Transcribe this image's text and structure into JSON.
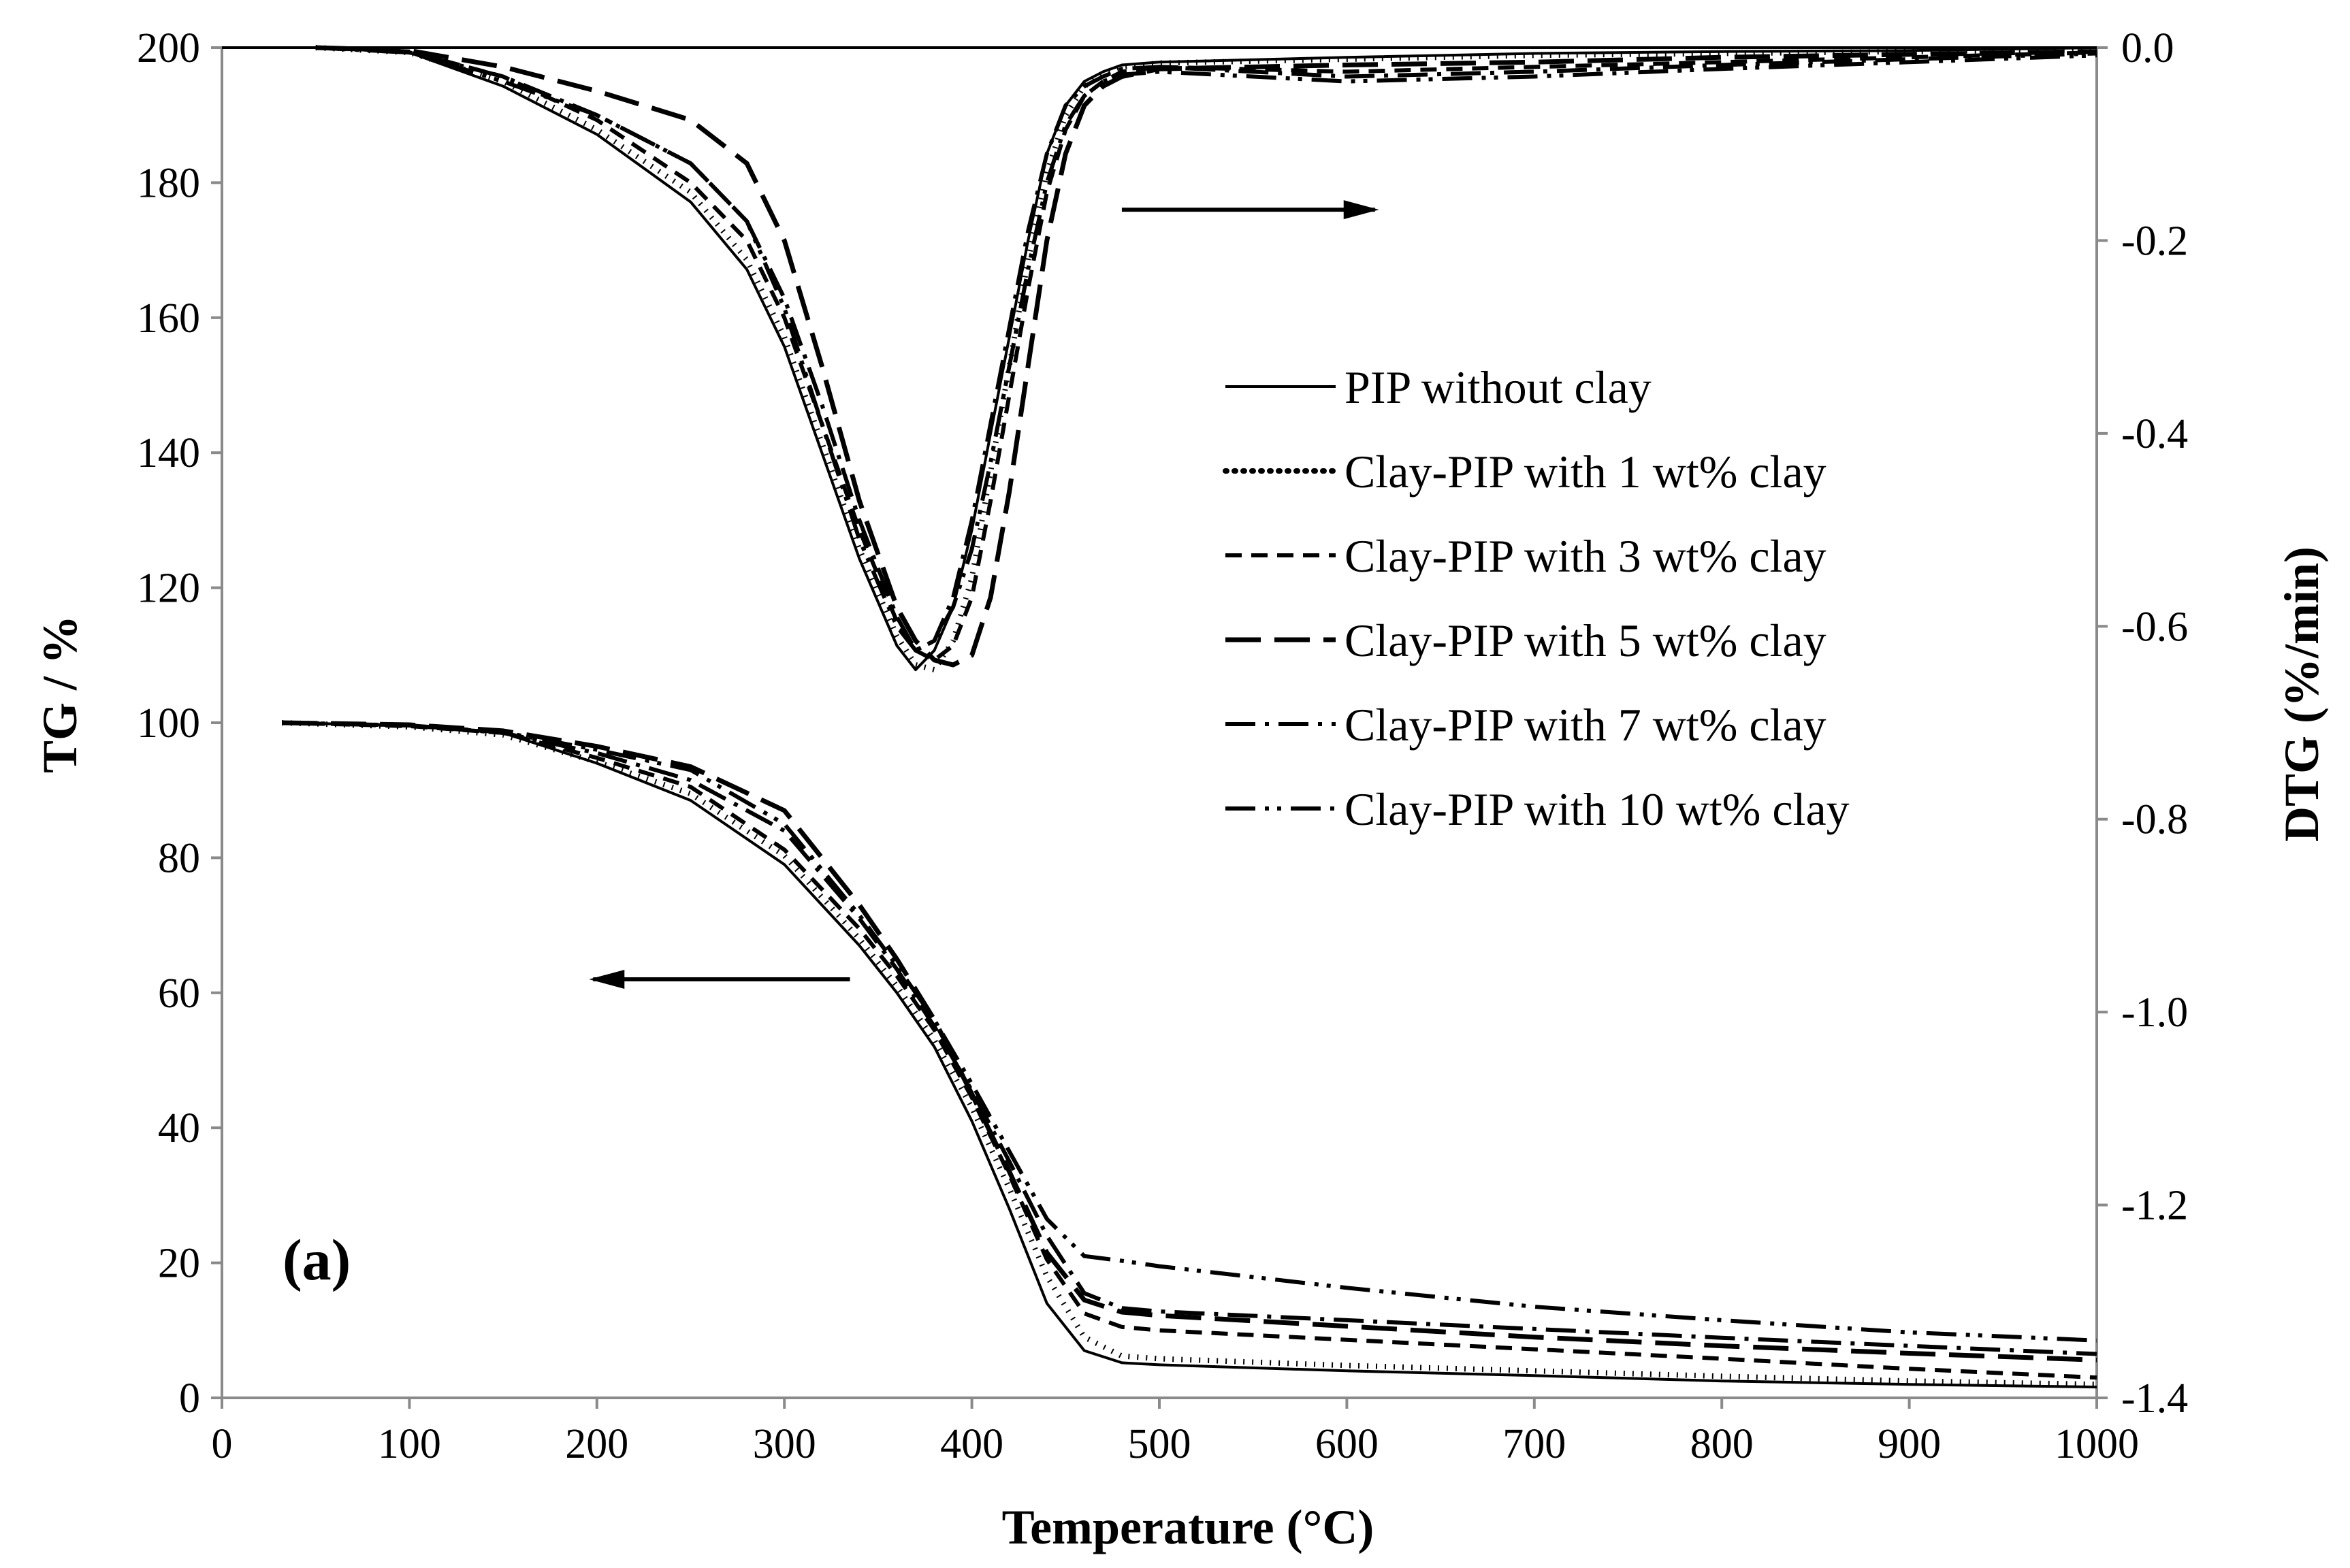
{
  "chart_data": {
    "type": "line",
    "panel_label": "(a)",
    "xlabel": "Temperature (°C)",
    "ylabel_left": "TG / %",
    "ylabel_right": "DTG (%/min)",
    "xlim": [
      0,
      1000
    ],
    "ylim_left": [
      0,
      200
    ],
    "ylim_right": [
      -1.4,
      0.0
    ],
    "x_ticks": [
      "0",
      "100",
      "200",
      "300",
      "400",
      "500",
      "600",
      "700",
      "800",
      "900",
      "1000"
    ],
    "y_left_ticks": [
      "0",
      "20",
      "40",
      "60",
      "80",
      "100",
      "120",
      "140",
      "160",
      "180",
      "200"
    ],
    "y_right_ticks": [
      "0.0",
      "-0.2",
      "-0.4",
      "-0.6",
      "-0.8",
      "-1.0",
      "-1.2",
      "-1.4"
    ],
    "legend_position": "center-right",
    "arrows": [
      {
        "direction": "right",
        "points_to": "DTG axis",
        "from": {
          "x": 480,
          "y": 176
        },
        "to": {
          "x": 615,
          "y": 176
        }
      },
      {
        "direction": "left",
        "points_to": "TG axis",
        "from": {
          "x": 335,
          "y": 62
        },
        "to": {
          "x": 198,
          "y": 62
        }
      }
    ],
    "series": [
      {
        "name": "PIP without clay",
        "dash": "solid",
        "tg": {
          "x": [
            32,
            100,
            150,
            200,
            250,
            300,
            340,
            360,
            380,
            400,
            420,
            440,
            460,
            480,
            500,
            600,
            700,
            800,
            900,
            1000
          ],
          "y": [
            100,
            99.6,
            98.5,
            94,
            88.5,
            79,
            67,
            60,
            52,
            41,
            28,
            14,
            7,
            5.2,
            4.9,
            4,
            3.3,
            2.5,
            2,
            1.6
          ]
        },
        "dtg": {
          "x": [
            50,
            100,
            150,
            200,
            250,
            280,
            300,
            320,
            340,
            360,
            370,
            380,
            390,
            400,
            410,
            420,
            430,
            440,
            450,
            460,
            470,
            480,
            500,
            600,
            700,
            800,
            900,
            1000
          ],
          "y": [
            0.0,
            -0.005,
            -0.04,
            -0.09,
            -0.16,
            -0.23,
            -0.31,
            -0.42,
            -0.53,
            -0.62,
            -0.645,
            -0.625,
            -0.58,
            -0.5,
            -0.4,
            -0.3,
            -0.2,
            -0.11,
            -0.06,
            -0.035,
            -0.025,
            -0.018,
            -0.015,
            -0.01,
            -0.006,
            -0.004,
            -0.003,
            0.0
          ]
        }
      },
      {
        "name": "Clay-PIP with 1 wt% clay",
        "dash": "dotted",
        "tg": {
          "x": [
            32,
            100,
            150,
            200,
            250,
            300,
            340,
            360,
            380,
            400,
            420,
            440,
            460,
            480,
            500,
            600,
            700,
            800,
            900,
            1000
          ],
          "y": [
            100,
            99.4,
            98.2,
            94.2,
            89.5,
            80.3,
            68,
            61,
            53,
            43,
            31,
            18,
            9,
            6.2,
            5.8,
            4.8,
            4,
            3.2,
            2.5,
            2
          ]
        },
        "dtg": {
          "x": [
            50,
            100,
            150,
            200,
            250,
            280,
            300,
            320,
            340,
            360,
            370,
            380,
            390,
            400,
            410,
            420,
            430,
            440,
            450,
            460,
            470,
            480,
            500,
            600,
            700,
            800,
            900,
            1000
          ],
          "y": [
            0.0,
            -0.005,
            -0.035,
            -0.085,
            -0.15,
            -0.22,
            -0.3,
            -0.41,
            -0.52,
            -0.61,
            -0.64,
            -0.645,
            -0.615,
            -0.55,
            -0.44,
            -0.33,
            -0.22,
            -0.13,
            -0.07,
            -0.04,
            -0.028,
            -0.02,
            -0.016,
            -0.012,
            -0.008,
            -0.006,
            -0.004,
            -0.002
          ]
        }
      },
      {
        "name": "Clay-PIP with 3 wt% clay",
        "dash": "dashed",
        "tg": {
          "x": [
            32,
            100,
            150,
            200,
            250,
            300,
            340,
            360,
            380,
            400,
            420,
            440,
            460,
            480,
            500,
            600,
            700,
            800,
            900,
            1000
          ],
          "y": [
            100,
            99.5,
            98.5,
            94.8,
            90.5,
            81.2,
            69.5,
            62.5,
            54.5,
            44.5,
            33,
            20.5,
            12.5,
            10.5,
            10,
            8.6,
            7.2,
            5.8,
            4.3,
            3
          ]
        },
        "dtg": {
          "x": [
            50,
            100,
            150,
            200,
            250,
            280,
            300,
            320,
            340,
            360,
            370,
            380,
            390,
            400,
            410,
            420,
            430,
            440,
            450,
            460,
            470,
            480,
            500,
            600,
            700,
            800,
            900,
            1000
          ],
          "y": [
            0.0,
            -0.004,
            -0.03,
            -0.075,
            -0.14,
            -0.2,
            -0.28,
            -0.39,
            -0.5,
            -0.595,
            -0.625,
            -0.635,
            -0.62,
            -0.57,
            -0.47,
            -0.36,
            -0.25,
            -0.15,
            -0.085,
            -0.05,
            -0.035,
            -0.025,
            -0.02,
            -0.025,
            -0.02,
            -0.015,
            -0.01,
            -0.005
          ]
        }
      },
      {
        "name": "Clay-PIP with 5 wt% clay",
        "dash": "longdash",
        "tg": {
          "x": [
            32,
            100,
            150,
            200,
            250,
            300,
            340,
            360,
            380,
            400,
            420,
            440,
            460,
            480,
            500,
            600,
            700,
            800,
            900,
            1000
          ],
          "y": [
            100,
            99.7,
            98.8,
            96.5,
            93.5,
            87,
            73,
            65,
            56,
            45,
            33.5,
            21.5,
            14.5,
            12.7,
            12.2,
            10.6,
            9,
            7.7,
            6.6,
            5.6
          ]
        },
        "dtg": {
          "x": [
            50,
            100,
            150,
            200,
            250,
            280,
            300,
            320,
            340,
            360,
            370,
            380,
            390,
            400,
            410,
            420,
            430,
            440,
            450,
            460,
            470,
            480,
            500,
            600,
            700,
            800,
            900,
            1000
          ],
          "y": [
            0.0,
            -0.003,
            -0.02,
            -0.045,
            -0.075,
            -0.12,
            -0.2,
            -0.33,
            -0.47,
            -0.58,
            -0.615,
            -0.635,
            -0.64,
            -0.63,
            -0.57,
            -0.46,
            -0.33,
            -0.2,
            -0.11,
            -0.06,
            -0.04,
            -0.03,
            -0.022,
            -0.018,
            -0.015,
            -0.01,
            -0.007,
            -0.004
          ]
        }
      },
      {
        "name": "Clay-PIP with 7 wt% clay",
        "dash": "dashdot",
        "tg": {
          "x": [
            32,
            100,
            150,
            200,
            250,
            300,
            340,
            360,
            380,
            400,
            420,
            440,
            460,
            480,
            500,
            600,
            700,
            800,
            900,
            1000
          ],
          "y": [
            100,
            99.6,
            98.5,
            95.5,
            91.5,
            84,
            71,
            63.5,
            55,
            45.5,
            35,
            24,
            15.5,
            13.3,
            12.8,
            11.5,
            10.2,
            8.9,
            7.7,
            6.5
          ]
        },
        "dtg": {
          "x": [
            50,
            100,
            150,
            200,
            250,
            280,
            300,
            320,
            340,
            360,
            370,
            380,
            390,
            400,
            410,
            420,
            430,
            440,
            450,
            460,
            470,
            480,
            500,
            600,
            700,
            800,
            900,
            1000
          ],
          "y": [
            0.0,
            -0.005,
            -0.03,
            -0.07,
            -0.12,
            -0.18,
            -0.26,
            -0.37,
            -0.49,
            -0.59,
            -0.625,
            -0.615,
            -0.57,
            -0.49,
            -0.39,
            -0.29,
            -0.19,
            -0.11,
            -0.06,
            -0.04,
            -0.03,
            -0.022,
            -0.02,
            -0.03,
            -0.025,
            -0.018,
            -0.012,
            -0.006
          ]
        }
      },
      {
        "name": "Clay-PIP with 10 wt% clay",
        "dash": "dashdotdot",
        "tg": {
          "x": [
            32,
            100,
            150,
            200,
            250,
            300,
            340,
            360,
            380,
            400,
            420,
            440,
            460,
            480,
            500,
            600,
            700,
            800,
            900,
            1000
          ],
          "y": [
            100,
            99.6,
            98.6,
            96,
            93,
            85,
            71.5,
            64,
            56,
            46.5,
            36.5,
            26.5,
            21,
            20.3,
            19.5,
            16.3,
            13.5,
            11.5,
            9.7,
            8.5
          ]
        },
        "dtg": {
          "x": [
            50,
            100,
            150,
            200,
            250,
            280,
            300,
            320,
            340,
            360,
            370,
            380,
            390,
            400,
            410,
            420,
            430,
            440,
            450,
            460,
            470,
            480,
            500,
            600,
            700,
            800,
            900,
            1000
          ],
          "y": [
            0.0,
            -0.005,
            -0.035,
            -0.07,
            -0.12,
            -0.18,
            -0.27,
            -0.39,
            -0.51,
            -0.6,
            -0.625,
            -0.615,
            -0.58,
            -0.52,
            -0.43,
            -0.33,
            -0.23,
            -0.14,
            -0.08,
            -0.05,
            -0.035,
            -0.028,
            -0.025,
            -0.035,
            -0.03,
            -0.022,
            -0.015,
            -0.008
          ]
        }
      }
    ]
  }
}
